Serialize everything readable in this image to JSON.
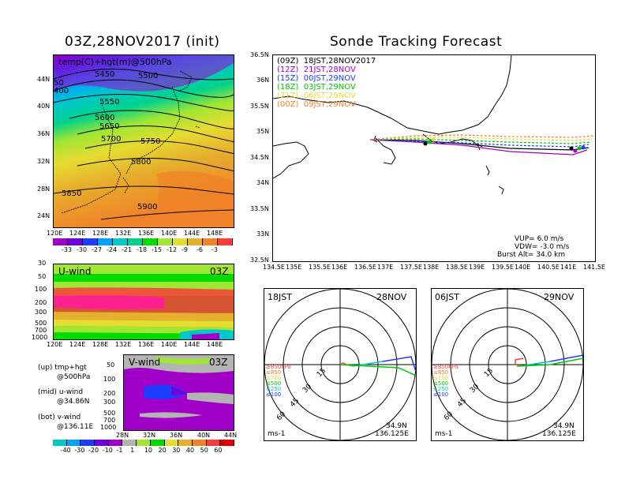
{
  "left_title": "03Z,28NOV2017 (init)",
  "right_title": "Sonde Tracking Forecast",
  "top_map": {
    "label": "temp(C)+hgt(m)@500hPa",
    "lat_ticks": [
      "44N",
      "40N",
      "36N",
      "32N",
      "28N",
      "24N"
    ],
    "lon_ticks": [
      "120E",
      "124E",
      "128E",
      "132E",
      "136E",
      "140E",
      "144E",
      "148E"
    ],
    "contours": [
      "5450",
      "5500",
      "5400",
      "5550",
      "5600",
      "5650",
      "5700",
      "5750",
      "5800",
      "5850",
      "5900",
      "50",
      "400"
    ]
  },
  "temp_colorbar": {
    "labels": [
      "-33",
      "-30",
      "-27",
      "-24",
      "-21",
      "-18",
      "-15",
      "-12",
      "-9",
      "-6",
      "-3"
    ],
    "colors": [
      "#a000c8",
      "#6e00dc",
      "#1e3cff",
      "#00a0ff",
      "#00c8c8",
      "#00d28c",
      "#00dc00",
      "#a0e632",
      "#e6dc32",
      "#e6af2d",
      "#f08228",
      "#fa3c3c"
    ]
  },
  "uwind": {
    "label": "U-wind",
    "time": "03Z",
    "p_ticks": [
      "30",
      "50",
      "100",
      "200",
      "300",
      "500",
      "700",
      "1000"
    ],
    "lon_ticks": [
      "120E",
      "124E",
      "128E",
      "132E",
      "136E",
      "140E",
      "144E",
      "148E"
    ]
  },
  "vwind": {
    "label": "V-wind",
    "time": "03Z",
    "p_ticks": [
      "50",
      "100",
      "200",
      "300",
      "500",
      "700",
      "1000"
    ],
    "lat_ticks": [
      "28N",
      "32N",
      "36N",
      "40N",
      "44N"
    ]
  },
  "legend_notes": [
    {
      "line1": "(up) tmp+hgt",
      "line2": "@500hPa"
    },
    {
      "line1": "(mid) u-wind",
      "line2": "@34.86N"
    },
    {
      "line1": "(bot) v-wind",
      "line2": "@136.11E"
    }
  ],
  "wind_colorbar": {
    "labels": [
      "-40",
      "-30",
      "-20",
      "-10",
      "-1",
      "1",
      "10",
      "20",
      "30",
      "40",
      "50",
      "60"
    ],
    "colors": [
      "#00c8c8",
      "#00a0ff",
      "#1e3cff",
      "#6e00dc",
      "#a000c8",
      "#b4b4b4",
      "#a0e632",
      "#00dc00",
      "#e6dc32",
      "#e6af2d",
      "#f08228",
      "#fa3c3c",
      "#dc0000"
    ]
  },
  "track_map": {
    "legend": [
      {
        "text": "(09Z)  18JST,28NOV2017",
        "color": "#000000"
      },
      {
        "text": "(12Z)  21JST,28NOV",
        "color": "#a000c8"
      },
      {
        "text": "(15Z)  00JST,29NOV",
        "color": "#1e3cff"
      },
      {
        "text": "(18Z)  03JST,29NOV",
        "color": "#00c800"
      },
      {
        "text": "(21Z)  06JST,29NOV",
        "color": "#e6dc32"
      },
      {
        "text": "(00Z)  09JST,29NOV",
        "color": "#f08228"
      }
    ],
    "lat_ticks": [
      "36.5N",
      "36N",
      "35.5N",
      "35N",
      "34.5N",
      "34N",
      "33.5N",
      "33N",
      "32.5N"
    ],
    "lon_ticks": [
      "134.5E",
      "135E",
      "135.5E",
      "136E",
      "136.5E",
      "137E",
      "137.5E",
      "138E",
      "138.5E",
      "139E",
      "139.5E",
      "140E",
      "140.5E",
      "141E",
      "141.5E"
    ],
    "vup": "VUP=  6.0  m/s",
    "vdw": "VDW= -3.0  m/s",
    "burst": "Burst Alt=  34.0  km"
  },
  "hodo_left": {
    "time": "18JST",
    "date": "28NOV",
    "lat": "34.9N",
    "lon": "136.125E",
    "unit": "ms-1",
    "rings": [
      "15",
      "30",
      "45",
      "60"
    ],
    "levels": [
      {
        "text": "≥850hPa",
        "color": "#fa3c3c"
      },
      {
        "text": "≤850",
        "color": "#f08228"
      },
      {
        "text": "≤700",
        "color": "#e6dc32"
      },
      {
        "text": "≤500",
        "color": "#00c800"
      },
      {
        "text": "≤250",
        "color": "#00c8c8"
      },
      {
        "text": "≤100",
        "color": "#1e3cff"
      }
    ]
  },
  "hodo_right": {
    "time": "06JST",
    "date": "29NOV",
    "lat": "34.9N",
    "lon": "136.125E",
    "unit": "ms-1",
    "rings": [
      "15",
      "30",
      "45",
      "60"
    ],
    "levels": [
      {
        "text": "≥850hPa",
        "color": "#fa3c3c"
      },
      {
        "text": "≤850",
        "color": "#f08228"
      },
      {
        "text": "≤700",
        "color": "#e6dc32"
      },
      {
        "text": "≤500",
        "color": "#00c800"
      },
      {
        "text": "≤250",
        "color": "#00c8c8"
      },
      {
        "text": "≤100",
        "color": "#1e3cff"
      }
    ]
  }
}
